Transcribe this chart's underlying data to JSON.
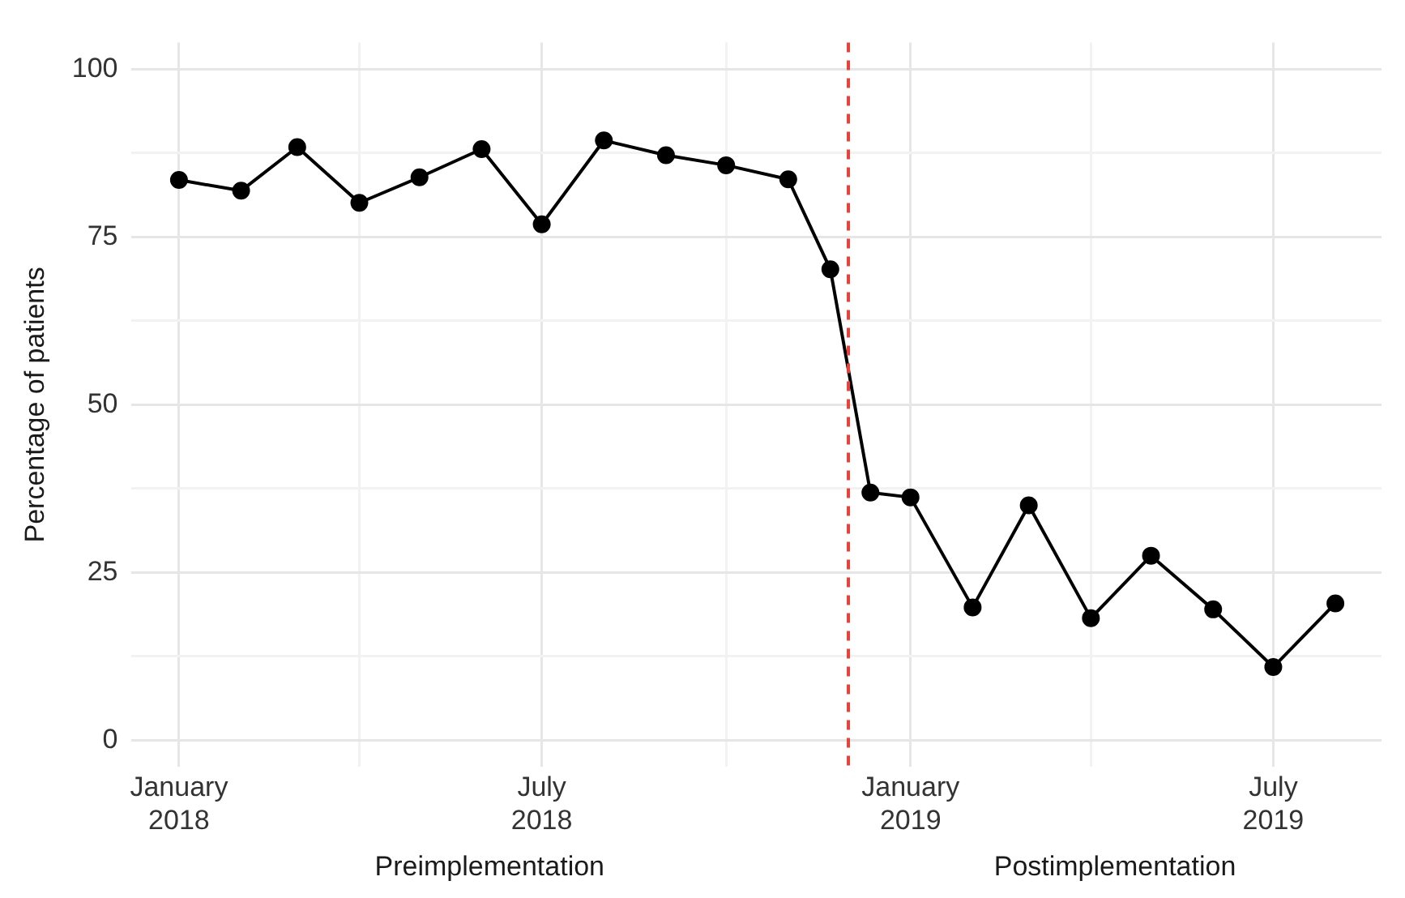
{
  "chart_data": {
    "type": "line",
    "ylabel": "Percentage of patients",
    "x": [
      "2018-01-01",
      "2018-02-01",
      "2018-03-01",
      "2018-04-01",
      "2018-05-01",
      "2018-06-01",
      "2018-07-01",
      "2018-08-01",
      "2018-09-01",
      "2018-10-01",
      "2018-11-01",
      "2018-11-22",
      "2018-12-12",
      "2019-01-01",
      "2019-02-01",
      "2019-03-01",
      "2019-04-01",
      "2019-05-01",
      "2019-06-01",
      "2019-07-01",
      "2019-08-01"
    ],
    "series": [
      {
        "color": "#000000",
        "values": [
          83.5,
          81.9,
          88.4,
          80.1,
          83.9,
          88.1,
          76.9,
          89.4,
          87.2,
          85.7,
          83.6,
          70.2,
          36.9,
          36.2,
          19.8,
          35.0,
          18.2,
          27.5,
          19.5,
          10.9,
          20.4
        ]
      }
    ],
    "xlim": [
      "2017-12-08",
      "2019-08-24"
    ],
    "xticks": [
      {
        "value": "2018-01-01",
        "label": "January 2018"
      },
      {
        "value": "2018-04-01",
        "label": null
      },
      {
        "value": "2018-07-01",
        "label": "July 2018"
      },
      {
        "value": "2018-10-01",
        "label": null
      },
      {
        "value": "2019-01-01",
        "label": "January 2019"
      },
      {
        "value": "2019-04-01",
        "label": null
      },
      {
        "value": "2019-07-01",
        "label": "July 2019"
      }
    ],
    "ylim": [
      -4,
      104
    ],
    "yticks": [
      0,
      {
        "value": 12.5,
        "label": null
      },
      25,
      {
        "value": 37.5,
        "label": null
      },
      50,
      {
        "value": 62.5,
        "label": null
      },
      75,
      {
        "value": 87.5,
        "label": null
      },
      100
    ],
    "ref_lines": [
      {
        "axis": "x",
        "value": "2018-12-01",
        "color": "#e8403a",
        "line_style": "dashed"
      }
    ],
    "annotations": [
      "Preimplementation",
      "Postimplementation"
    ],
    "grid": true,
    "legend": false,
    "marker": "circle",
    "line_style": "solid"
  }
}
